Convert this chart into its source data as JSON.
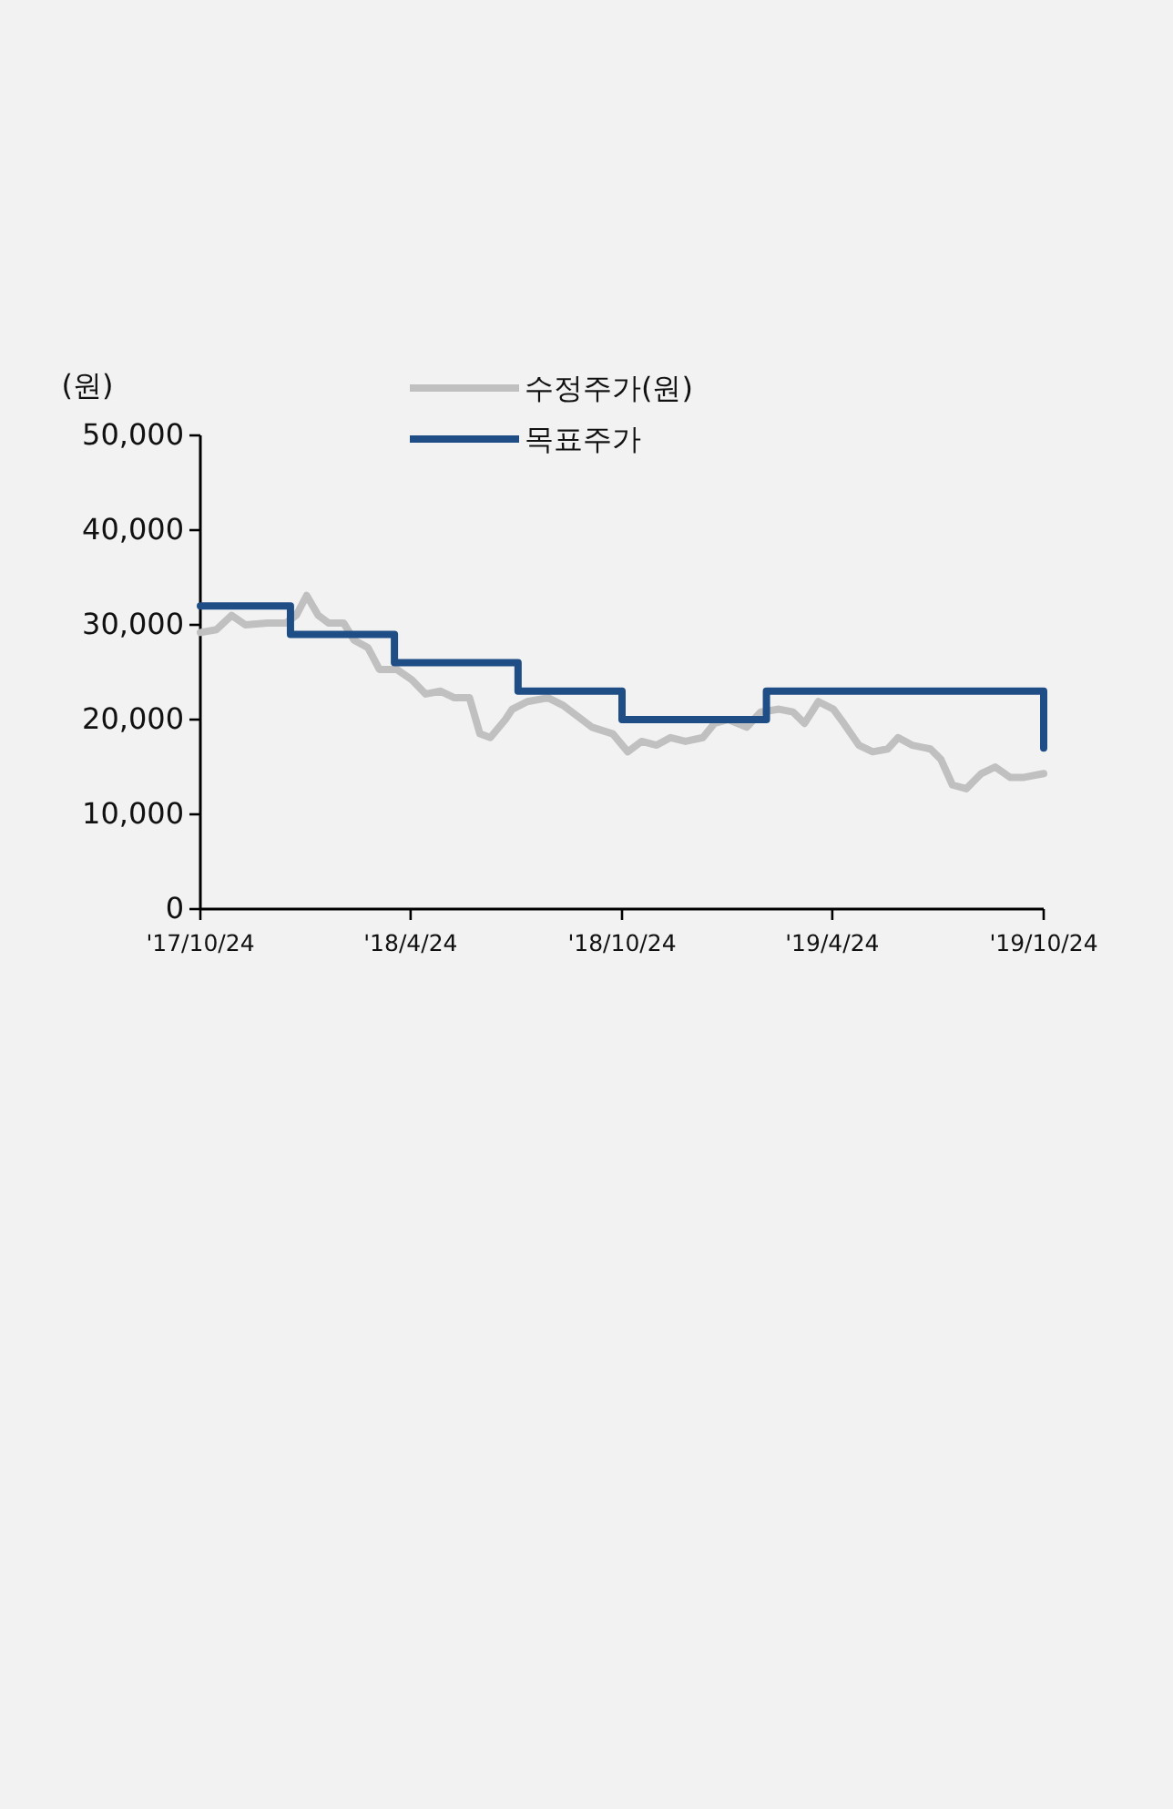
{
  "chart_data": {
    "type": "line",
    "ylabel": "(원)",
    "xlim": [
      "2017-10-24",
      "2019-10-24"
    ],
    "xticks": [
      {
        "value": "2017-10-24",
        "label": "'17/10/24"
      },
      {
        "value": "2018-04-24",
        "label": "'18/4/24"
      },
      {
        "value": "2018-10-24",
        "label": "'18/10/24"
      },
      {
        "value": "2019-04-24",
        "label": "'19/4/24"
      },
      {
        "value": "2019-10-24",
        "label": "'19/10/24"
      }
    ],
    "ylim": [
      0,
      50000
    ],
    "yticks": [
      {
        "value": 0,
        "label": "0"
      },
      {
        "value": 10000,
        "label": "10,000"
      },
      {
        "value": 20000,
        "label": "20,000"
      },
      {
        "value": 30000,
        "label": "30,000"
      },
      {
        "value": 40000,
        "label": "40,000"
      },
      {
        "value": 50000,
        "label": "50,000"
      }
    ],
    "grid": false,
    "legend": "top",
    "marker": "none",
    "line_style": "solid",
    "series": [
      {
        "name": "수정주가(원)",
        "color": "#c0c0c0",
        "x": [
          "2017-10-24",
          "2017-11-07",
          "2017-11-20",
          "2017-12-02",
          "2017-12-21",
          "2018-01-06",
          "2018-01-15",
          "2018-01-24",
          "2018-02-03",
          "2018-02-12",
          "2018-02-25",
          "2018-03-06",
          "2018-03-18",
          "2018-03-28",
          "2018-04-12",
          "2018-04-25",
          "2018-05-07",
          "2018-05-20",
          "2018-06-01",
          "2018-06-14",
          "2018-06-23",
          "2018-07-02",
          "2018-07-15",
          "2018-07-21",
          "2018-08-03",
          "2018-08-21",
          "2018-09-03",
          "2018-09-15",
          "2018-09-28",
          "2018-10-16",
          "2018-10-29",
          "2018-11-10",
          "2018-11-23",
          "2018-12-05",
          "2018-12-18",
          "2019-01-02",
          "2019-01-12",
          "2019-01-24",
          "2019-02-09",
          "2019-02-21",
          "2019-03-09",
          "2019-03-21",
          "2019-03-31",
          "2019-04-12",
          "2019-04-25",
          "2019-05-04",
          "2019-05-17",
          "2019-05-29",
          "2019-06-11",
          "2019-06-20",
          "2019-07-02",
          "2019-07-18",
          "2019-07-27",
          "2019-08-06",
          "2019-08-18",
          "2019-08-31",
          "2019-09-12",
          "2019-09-25",
          "2019-10-07",
          "2019-10-24"
        ],
        "values": [
          29200,
          29500,
          31000,
          30000,
          30200,
          30200,
          31000,
          33100,
          31000,
          30200,
          30200,
          28400,
          27600,
          25300,
          25300,
          24200,
          22700,
          23000,
          22300,
          22300,
          18500,
          18100,
          20000,
          21100,
          21900,
          22300,
          21500,
          20400,
          19200,
          18500,
          16600,
          17700,
          17300,
          18100,
          17700,
          18100,
          19600,
          20000,
          19200,
          20800,
          21100,
          20800,
          19600,
          21900,
          21100,
          19600,
          17300,
          16600,
          16900,
          18100,
          17300,
          16900,
          15800,
          13100,
          12700,
          14300,
          15000,
          13900,
          13900,
          14300
        ]
      },
      {
        "name": "목표주가",
        "color": "#1f4e86",
        "type": "step",
        "x": [
          "2017-10-24",
          "2018-01-10",
          "2018-04-10",
          "2018-07-26",
          "2018-10-24",
          "2019-02-26",
          "2019-10-23",
          "2019-10-24"
        ],
        "values": [
          32000,
          29000,
          26000,
          23000,
          20000,
          23000,
          23000,
          17000
        ]
      }
    ]
  }
}
